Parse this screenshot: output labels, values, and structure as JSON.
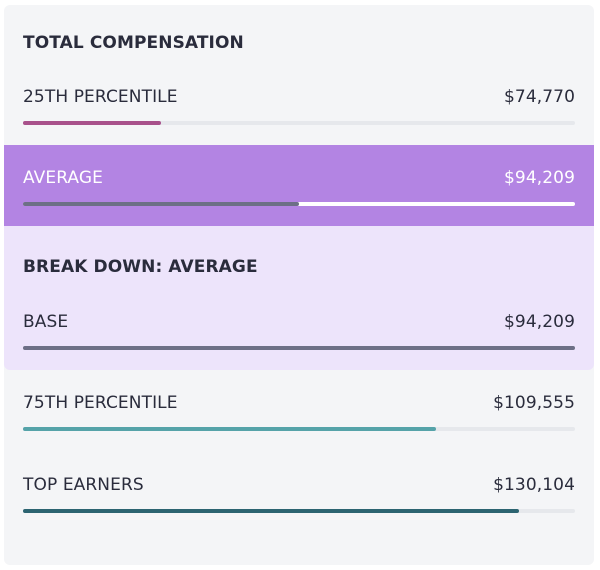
{
  "title": "TOTAL COMPENSATION",
  "rows": [
    {
      "label": "25TH PERCENTILE",
      "value": "$74,770",
      "fill": 0.25,
      "color": "#a8518b"
    },
    {
      "label": "AVERAGE",
      "value": "$94,209",
      "fill": 0.5,
      "color": "#6d6f86"
    },
    {
      "label": "75TH PERCENTILE",
      "value": "$109,555",
      "fill": 0.748,
      "color": "#55a3a9"
    },
    {
      "label": "TOP EARNERS",
      "value": "$130,104",
      "fill": 0.898,
      "color": "#2c6471"
    }
  ],
  "breakdown": {
    "heading": "BREAK DOWN: AVERAGE",
    "label": "BASE",
    "value": "$94,209",
    "fill": 1.0,
    "color": "#6d6f86"
  },
  "colors": {
    "average_highlight": "#b384e3",
    "breakdown_background": "#ede4fb",
    "average_track": "#ffffff"
  }
}
